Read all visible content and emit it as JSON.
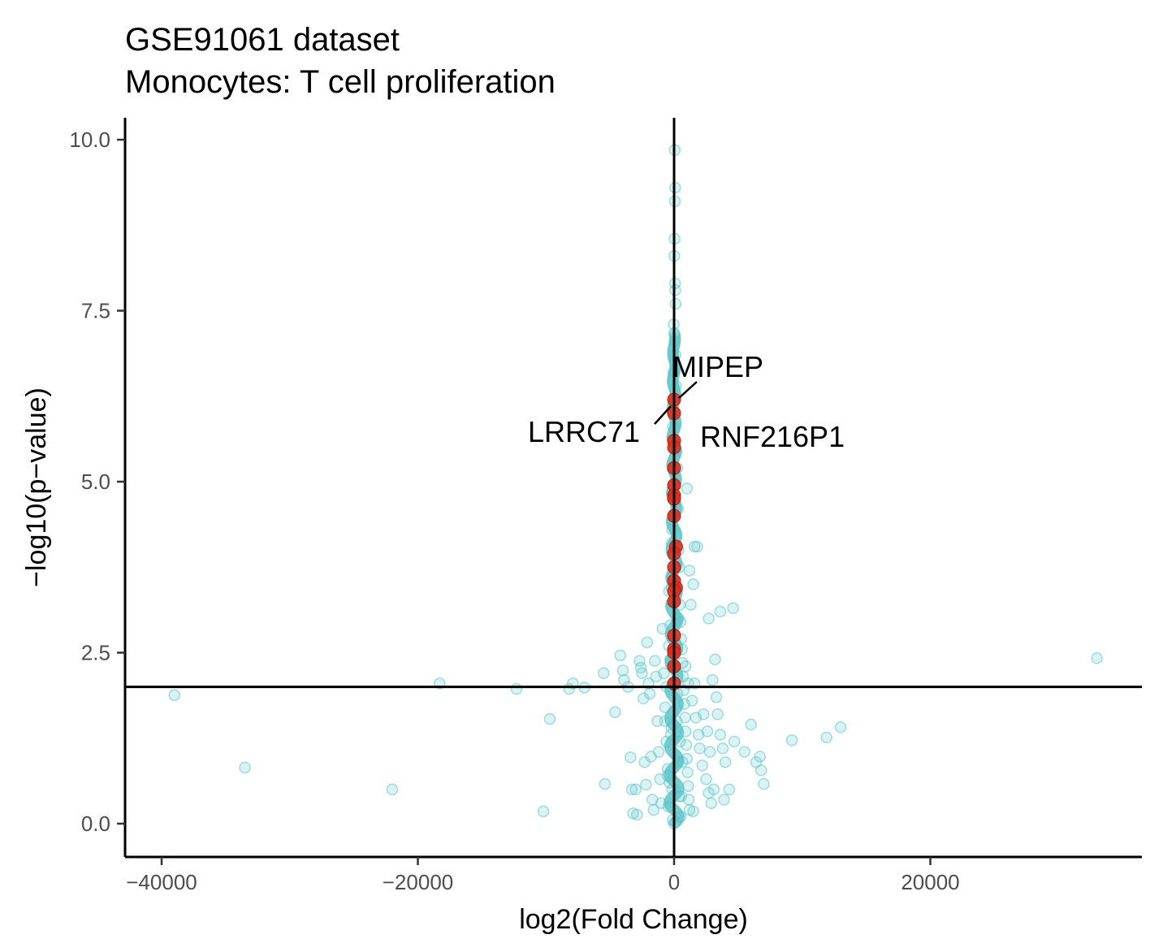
{
  "chart_data": {
    "type": "scatter",
    "title": "GSE91061 dataset",
    "subtitle": "Monocytes: T cell proliferation",
    "xlabel": "log2(Fold Change)",
    "ylabel": "−log10(p−value)",
    "xlim": [
      -42500,
      36500
    ],
    "ylim": [
      -0.45,
      10.3
    ],
    "x_ticks": [
      -40000,
      -20000,
      0,
      20000
    ],
    "x_tick_labels": [
      "−40000",
      "−20000",
      "0",
      "20000"
    ],
    "y_ticks": [
      0,
      2.5,
      5,
      7.5,
      10
    ],
    "y_tick_labels": [
      "0.0",
      "2.5",
      "5.0",
      "7.5",
      "10.0"
    ],
    "hline": 2,
    "vline": 0,
    "grid": false,
    "legend": "none",
    "colors": {
      "background_points": "#5bc4c9",
      "highlight_points": "#dd2e1c",
      "axes": "#000000"
    },
    "background_points": [
      [
        -39000,
        1.88
      ],
      [
        -33500,
        0.82
      ],
      [
        -22000,
        0.5
      ],
      [
        -18300,
        2.05
      ],
      [
        -12300,
        1.97
      ],
      [
        -10200,
        0.18
      ],
      [
        -9700,
        1.53
      ],
      [
        -8200,
        1.97
      ],
      [
        -7900,
        2.05
      ],
      [
        -7000,
        1.99
      ],
      [
        -5500,
        2.2
      ],
      [
        -5400,
        0.58
      ],
      [
        -4600,
        1.63
      ],
      [
        -4200,
        2.46
      ],
      [
        -4000,
        2.24
      ],
      [
        -3900,
        2.1
      ],
      [
        -3600,
        2.0
      ],
      [
        -3400,
        0.97
      ],
      [
        -3300,
        0.5
      ],
      [
        -3200,
        0.15
      ],
      [
        -3000,
        0.5
      ],
      [
        -2900,
        0.13
      ],
      [
        -2700,
        2.38
      ],
      [
        -2600,
        2.28
      ],
      [
        -2500,
        2.2
      ],
      [
        -2400,
        1.83
      ],
      [
        -2300,
        0.9
      ],
      [
        -2200,
        0.57
      ],
      [
        -2100,
        2.65
      ],
      [
        -2000,
        2.05
      ],
      [
        -1900,
        1.9
      ],
      [
        -1800,
        0.98
      ],
      [
        -1700,
        0.35
      ],
      [
        -1600,
        0.2
      ],
      [
        -1500,
        2.38
      ],
      [
        -1400,
        2.15
      ],
      [
        -1300,
        1.5
      ],
      [
        -1200,
        1.05
      ],
      [
        -1100,
        0.65
      ],
      [
        -1000,
        0.3
      ],
      [
        -900,
        2.85
      ],
      [
        -800,
        2.2
      ],
      [
        -700,
        1.7
      ],
      [
        -600,
        1.2
      ],
      [
        -500,
        0.8
      ],
      [
        -400,
        3.4
      ],
      [
        -300,
        2.9
      ],
      [
        -200,
        4.1
      ],
      [
        -100,
        3.6
      ],
      [
        -50,
        6.05
      ],
      [
        50,
        9.85
      ],
      [
        80,
        9.3
      ],
      [
        60,
        9.1
      ],
      [
        40,
        8.55
      ],
      [
        20,
        8.3
      ],
      [
        70,
        7.9
      ],
      [
        90,
        7.8
      ],
      [
        120,
        7.6
      ],
      [
        -30,
        7.3
      ],
      [
        30,
        7.05
      ],
      [
        100,
        6.85
      ],
      [
        -60,
        6.6
      ],
      [
        150,
        6.4
      ],
      [
        -80,
        5.8
      ],
      [
        200,
        5.45
      ],
      [
        250,
        5.2
      ],
      [
        -120,
        4.9
      ],
      [
        300,
        4.6
      ],
      [
        -150,
        4.3
      ],
      [
        350,
        4.0
      ],
      [
        400,
        3.75
      ],
      [
        -200,
        3.45
      ],
      [
        450,
        3.2
      ],
      [
        500,
        2.95
      ],
      [
        550,
        2.7
      ],
      [
        600,
        2.55
      ],
      [
        650,
        2.35
      ],
      [
        700,
        2.15
      ],
      [
        750,
        1.95
      ],
      [
        800,
        1.75
      ],
      [
        850,
        1.55
      ],
      [
        900,
        1.35
      ],
      [
        950,
        1.15
      ],
      [
        1000,
        0.95
      ],
      [
        1050,
        0.75
      ],
      [
        1100,
        0.55
      ],
      [
        1150,
        0.35
      ],
      [
        1200,
        0.2
      ],
      [
        1000,
        4.9
      ],
      [
        1200,
        3.7
      ],
      [
        1500,
        3.5
      ],
      [
        1600,
        4.05
      ],
      [
        1800,
        4.05
      ],
      [
        1300,
        3.2
      ],
      [
        900,
        2.3
      ],
      [
        1100,
        2.05
      ],
      [
        1600,
        2.05
      ],
      [
        1400,
        1.8
      ],
      [
        1700,
        1.55
      ],
      [
        1900,
        1.3
      ],
      [
        2000,
        1.1
      ],
      [
        2200,
        0.85
      ],
      [
        2500,
        0.65
      ],
      [
        2700,
        0.45
      ],
      [
        2900,
        0.3
      ],
      [
        3100,
        0.5
      ],
      [
        1500,
        0.18
      ],
      [
        2300,
        1.6
      ],
      [
        2600,
        1.35
      ],
      [
        2800,
        1.05
      ],
      [
        3000,
        2.1
      ],
      [
        3200,
        2.4
      ],
      [
        3300,
        1.85
      ],
      [
        3400,
        1.6
      ],
      [
        3600,
        1.3
      ],
      [
        3800,
        1.1
      ],
      [
        4000,
        0.9
      ],
      [
        4300,
        0.5
      ],
      [
        2700,
        3.0
      ],
      [
        3600,
        3.1
      ],
      [
        4600,
        3.15
      ],
      [
        4700,
        1.2
      ],
      [
        6000,
        1.45
      ],
      [
        6400,
        0.9
      ],
      [
        6700,
        0.98
      ],
      [
        6800,
        0.78
      ],
      [
        7000,
        0.58
      ],
      [
        9200,
        1.22
      ],
      [
        11900,
        1.26
      ],
      [
        13000,
        1.41
      ],
      [
        33000,
        2.42
      ],
      [
        5500,
        1.05
      ],
      [
        3900,
        0.35
      ],
      [
        200,
        1.5
      ],
      [
        -250,
        1.3
      ],
      [
        300,
        0.9
      ],
      [
        -350,
        0.6
      ],
      [
        400,
        0.4
      ],
      [
        -450,
        0.25
      ],
      [
        500,
        0.1
      ],
      [
        -100,
        0.05
      ],
      [
        100,
        0.02
      ],
      [
        -150,
        0.5
      ],
      [
        150,
        1.0
      ],
      [
        -200,
        1.4
      ],
      [
        250,
        1.9
      ],
      [
        -300,
        2.4
      ],
      [
        350,
        3.0
      ],
      [
        -400,
        2.6
      ],
      [
        450,
        1.2
      ],
      [
        -500,
        0.7
      ],
      [
        550,
        0.4
      ],
      [
        -600,
        2.0
      ],
      [
        650,
        0.9
      ],
      [
        -700,
        1.5
      ]
    ],
    "highlight_points": [
      [
        0,
        6.2
      ],
      [
        0,
        6.0
      ],
      [
        0,
        5.6
      ],
      [
        0,
        5.5
      ],
      [
        0,
        5.2
      ],
      [
        0,
        4.95
      ],
      [
        0,
        4.8
      ],
      [
        0,
        4.75
      ],
      [
        0,
        4.5
      ],
      [
        150,
        4.05
      ],
      [
        0,
        3.95
      ],
      [
        0,
        3.75
      ],
      [
        0,
        3.55
      ],
      [
        150,
        3.45
      ],
      [
        0,
        3.4
      ],
      [
        0,
        3.25
      ],
      [
        0,
        2.75
      ],
      [
        0,
        2.55
      ],
      [
        0,
        2.5
      ],
      [
        0,
        2.3
      ],
      [
        0,
        2.05
      ]
    ],
    "annotations": [
      {
        "text": "MIPEP",
        "x": 0,
        "y": 6.2
      },
      {
        "text": "LRRC71",
        "x": 0,
        "y": 6.0
      },
      {
        "text": "RNF216P1",
        "x": 0,
        "y": 5.6
      }
    ]
  }
}
